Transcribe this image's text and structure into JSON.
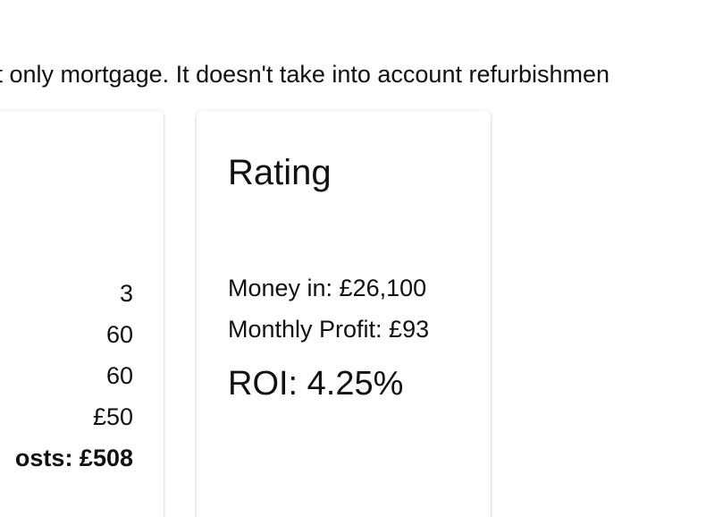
{
  "page": {
    "intro_text": "st only mortgage. It doesn't take into account refurbishmen"
  },
  "cards": {
    "left": {
      "lines": [
        "3",
        "60",
        "60",
        "£50",
        "osts: £508"
      ]
    },
    "rating": {
      "title": "Rating",
      "money_in": "Money in: £26,100",
      "monthly_profit": "Monthly Profit: £93",
      "roi": "ROI: 4.25%"
    }
  }
}
